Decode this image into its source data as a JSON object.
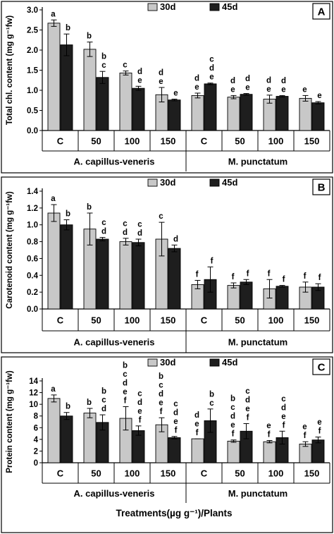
{
  "colors": {
    "d30": "#c8c8c8",
    "d45": "#1e1e1e",
    "frame": "#000000"
  },
  "x_axis_title": "Treatments(µg g⁻¹)/Plants",
  "chart_data": [
    {
      "type": "bar",
      "panel_label": "A",
      "ylabel": "Total chl. content (mg g⁻¹fw)",
      "ylim": [
        0,
        3.0
      ],
      "yticks": [
        "0.0",
        "0.5",
        "1.0",
        "1.5",
        "2.0",
        "2.5",
        "3.0"
      ],
      "tick_values": [
        0,
        0.5,
        1.0,
        1.5,
        2.0,
        2.5,
        3.0
      ],
      "categories": [
        "C",
        "50",
        "100",
        "150",
        "C",
        "50",
        "100",
        "150"
      ],
      "groups": [
        {
          "name": "A. capillus-veneris",
          "count": 4
        },
        {
          "name": "M. punctatum",
          "count": 4
        }
      ],
      "legend": "top",
      "series": [
        {
          "name": "30d",
          "values": [
            2.67,
            2.02,
            1.43,
            0.89,
            0.87,
            0.83,
            0.78,
            0.8
          ],
          "errors": [
            0.08,
            0.18,
            0.05,
            0.18,
            0.06,
            0.04,
            0.1,
            0.07
          ],
          "letters": [
            "a",
            "b",
            "c",
            "d\ne",
            "d\ne",
            "d\ne",
            "d\ne",
            "e"
          ]
        },
        {
          "name": "45d",
          "values": [
            2.13,
            1.32,
            1.05,
            0.76,
            1.16,
            0.9,
            0.85,
            0.69
          ],
          "errors": [
            0.27,
            0.15,
            0.05,
            0.02,
            0.02,
            0.02,
            0.02,
            0.03
          ],
          "letters": [
            "b",
            "b\nc",
            "d\ne",
            "e",
            "c\nd\ne",
            "d\ne",
            "d\ne",
            "e"
          ]
        }
      ]
    },
    {
      "type": "bar",
      "panel_label": "B",
      "ylabel": "Carotenoid content (mg g⁻¹fw)",
      "ylim": [
        0,
        1.4
      ],
      "yticks": [
        "0.0",
        "0.2",
        "0.4",
        "0.6",
        "0.8",
        "1.0",
        "1.2",
        "1.4"
      ],
      "tick_values": [
        0,
        0.2,
        0.4,
        0.6,
        0.8,
        1.0,
        1.2,
        1.4
      ],
      "categories": [
        "C",
        "50",
        "100",
        "150",
        "C",
        "50",
        "100",
        "150"
      ],
      "groups": [
        {
          "name": "A. capillus-veneris",
          "count": 4
        },
        {
          "name": "M. punctatum",
          "count": 4
        }
      ],
      "legend": "top",
      "series": [
        {
          "name": "30d",
          "values": [
            1.14,
            0.95,
            0.8,
            0.83,
            0.29,
            0.28,
            0.24,
            0.26
          ],
          "errors": [
            0.1,
            0.19,
            0.04,
            0.2,
            0.05,
            0.03,
            0.11,
            0.06
          ],
          "letters": [
            "a",
            "b",
            "c\nd",
            "c",
            "f",
            "f",
            "f",
            "f"
          ]
        },
        {
          "name": "45d",
          "values": [
            1.0,
            0.83,
            0.79,
            0.72,
            0.35,
            0.32,
            0.27,
            0.26
          ],
          "errors": [
            0.06,
            0.02,
            0.04,
            0.04,
            0.15,
            0.03,
            0.01,
            0.04
          ],
          "letters": [
            "b",
            "c\nd",
            "c\nd",
            "d",
            "f",
            "f",
            "f",
            "f"
          ]
        }
      ]
    },
    {
      "type": "bar",
      "panel_label": "C",
      "ylabel": "Protein content (mg g⁻¹fw)",
      "ylim": [
        0,
        14
      ],
      "yticks": [
        "0",
        "2",
        "4",
        "6",
        "8",
        "10",
        "12",
        "14"
      ],
      "tick_values": [
        0,
        2,
        4,
        6,
        8,
        10,
        12,
        14
      ],
      "categories": [
        "C",
        "50",
        "100",
        "150",
        "C",
        "50",
        "100",
        "150"
      ],
      "groups": [
        {
          "name": "A. capillus-veneris",
          "count": 4
        },
        {
          "name": "M. punctatum",
          "count": 4
        }
      ],
      "legend": "top",
      "series": [
        {
          "name": "30d",
          "values": [
            11.0,
            8.5,
            7.6,
            6.5,
            4.1,
            3.7,
            3.6,
            3.2
          ],
          "errors": [
            0.6,
            0.8,
            2.0,
            1.2,
            0.0,
            0.2,
            0.2,
            0.4
          ],
          "letters": [
            "a",
            "b",
            "b\nc\nd\ne\nf",
            "b\nc\nd\ne\nf",
            "d\ne\nf",
            "b\nc\nd\ne\nf",
            "e\nf",
            "e\nf"
          ]
        },
        {
          "name": "45d",
          "values": [
            8.0,
            6.9,
            5.5,
            4.3,
            7.2,
            5.4,
            4.3,
            3.9
          ],
          "errors": [
            0.6,
            1.3,
            0.8,
            0.2,
            2.0,
            1.3,
            1.1,
            0.5
          ],
          "letters": [
            "b",
            "b\nc\nd",
            "c\nd\ne\nf",
            "c\nd\ne\nf",
            "b\nc",
            "c\nd\ne\nf",
            "c\nd\ne\nf",
            "e\nf"
          ]
        }
      ]
    }
  ]
}
